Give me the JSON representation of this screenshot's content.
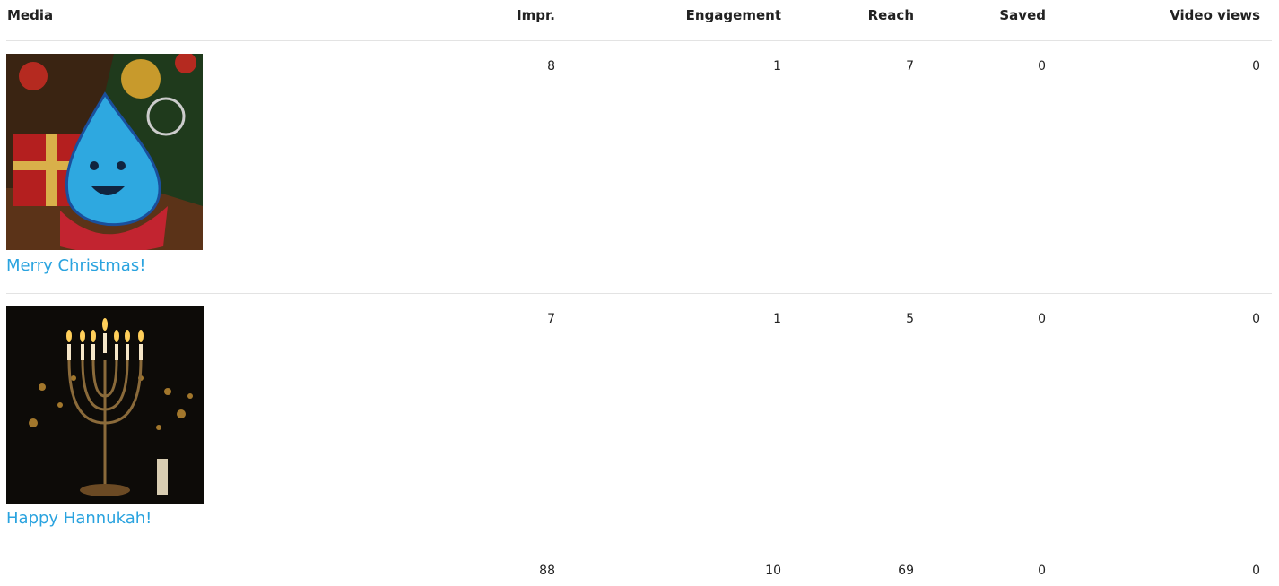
{
  "table": {
    "headers": [
      "Media",
      "Impr.",
      "Engagement",
      "Reach",
      "Saved",
      "Video views"
    ],
    "rows": [
      {
        "caption": "Merry Christmas!",
        "values": [
          8,
          1,
          7,
          0,
          0
        ]
      },
      {
        "caption": "Happy Hannukah!",
        "values": [
          7,
          1,
          5,
          0,
          0
        ]
      }
    ],
    "totals": [
      88,
      10,
      69,
      0,
      0
    ]
  }
}
